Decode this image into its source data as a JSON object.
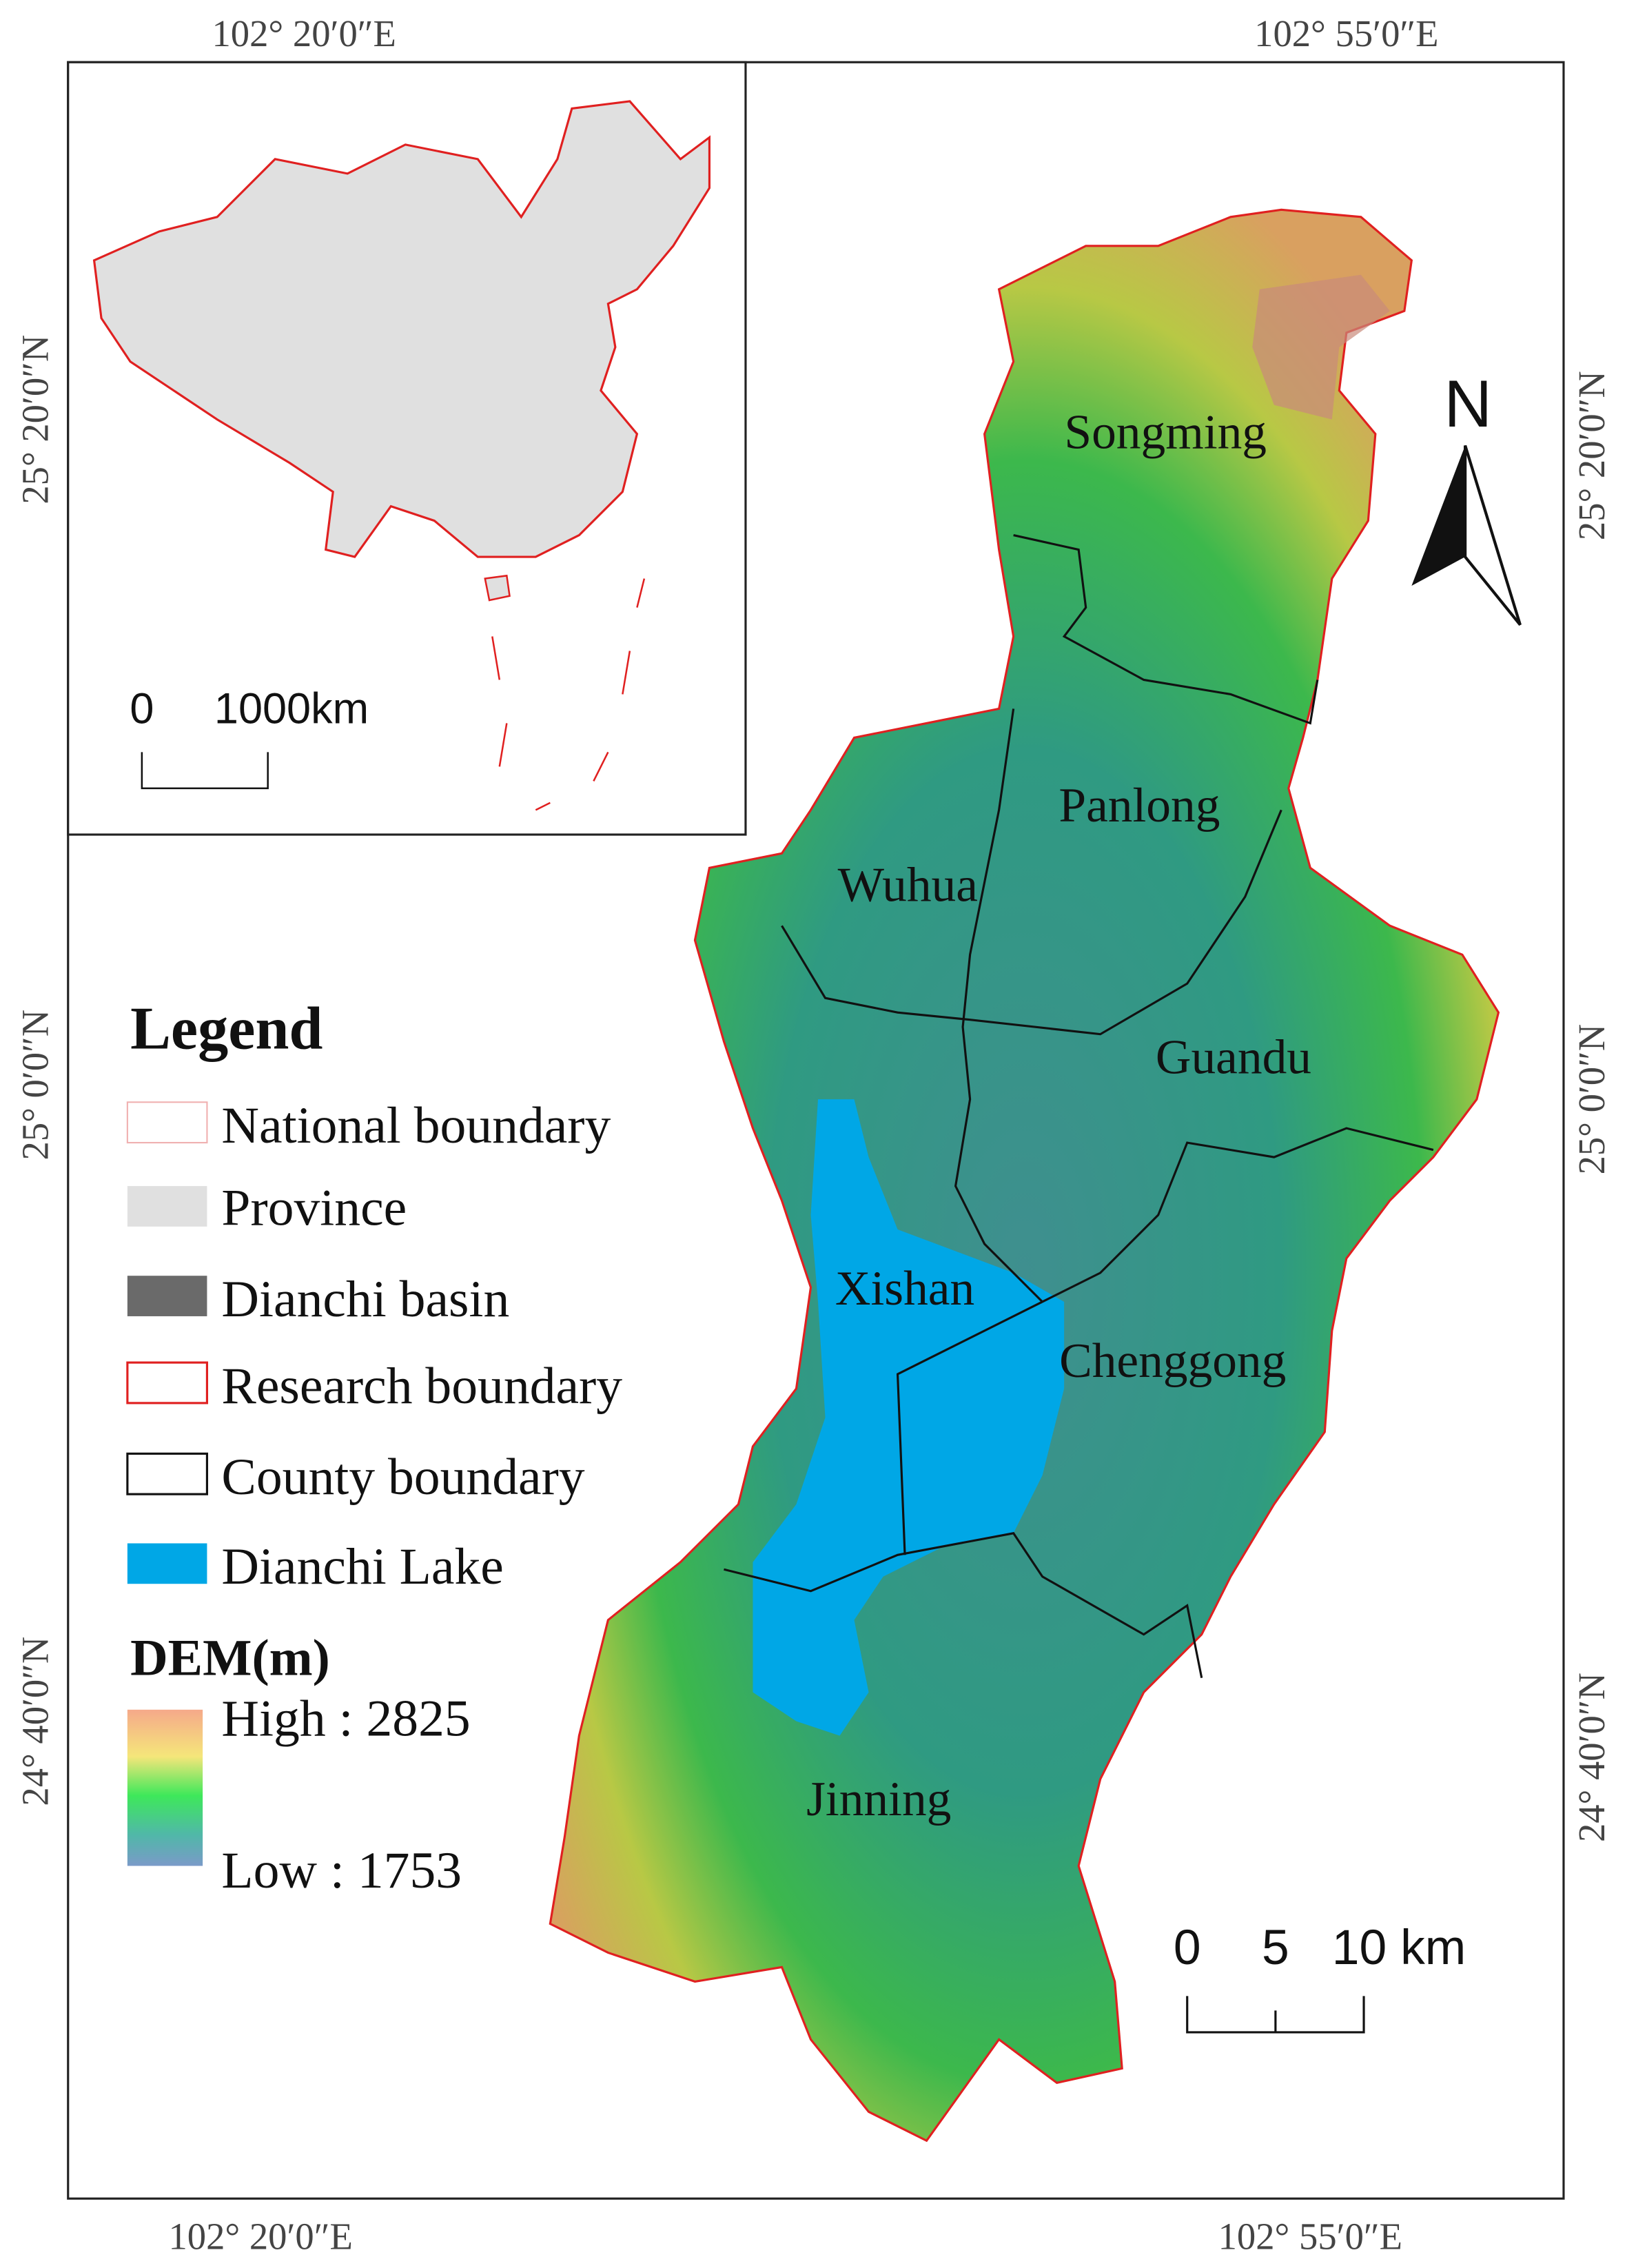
{
  "graticule": {
    "top": [
      "102° 20′0″E",
      "102° 55′0″E"
    ],
    "bottom": [
      "102° 20′0″E",
      "102° 55′0″E"
    ],
    "left": [
      "25° 20′0″N",
      "25° 0′0″N",
      "24° 40′0″N"
    ],
    "right": [
      "25° 20′0″N",
      "25° 0′0″N",
      "24° 40′0″N"
    ]
  },
  "inset": {
    "scale_labels": [
      "0",
      "1000km"
    ]
  },
  "legend": {
    "title": "Legend",
    "items": [
      "National boundary",
      "Province",
      "Dianchi basin",
      "Research boundary",
      "County boundary",
      "Dianchi Lake"
    ]
  },
  "dem": {
    "title": "DEM(m)",
    "high": "High : 2825",
    "low": "Low : 1753"
  },
  "places": [
    "Songming",
    "Panlong",
    "Wuhua",
    "Guandu",
    "Xishan",
    "Chenggong",
    "Jinning"
  ],
  "north": "N",
  "scale_labels": [
    "0",
    "5",
    "10 km"
  ]
}
